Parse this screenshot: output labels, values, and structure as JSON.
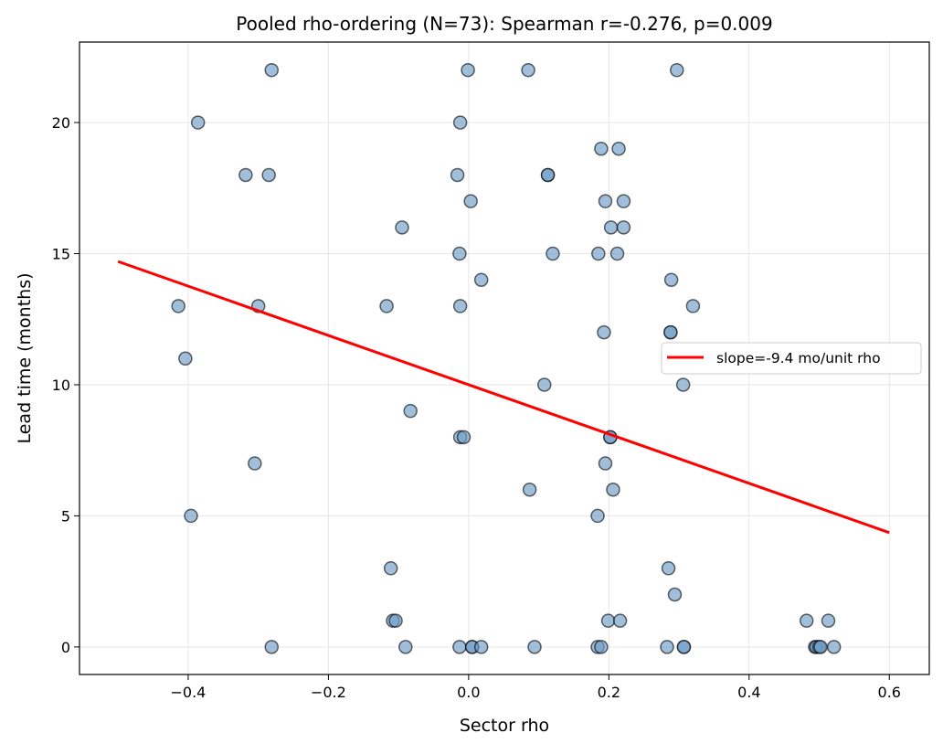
{
  "chart_data": {
    "type": "scatter",
    "title": "Pooled rho-ordering (N=73): Spearman r=-0.276, p=0.009",
    "xlabel": "Sector rho",
    "ylabel": "Lead time (months)",
    "xlim": [
      -0.555,
      0.657
    ],
    "ylim": [
      -1.05,
      23.07
    ],
    "xticks": [
      -0.4,
      -0.2,
      0.0,
      0.2,
      0.4,
      0.6
    ],
    "xtick_labels": [
      "−0.4",
      "−0.2",
      "0.0",
      "0.2",
      "0.4",
      "0.6"
    ],
    "yticks": [
      0,
      5,
      10,
      15,
      20
    ],
    "ytick_labels": [
      "0",
      "5",
      "10",
      "15",
      "20"
    ],
    "grid": true,
    "legend": {
      "placement": "center-right",
      "entries": [
        "slope=-9.4 mo/unit rho"
      ]
    },
    "colors": {
      "points": "#6f9cc8",
      "point_edge": "#000000",
      "fit_line": "#ff0000"
    },
    "fit_line": {
      "name": "slope=-9.4 mo/unit rho",
      "x": [
        -0.5,
        0.6
      ],
      "y": [
        14.7,
        4.36
      ]
    },
    "points": [
      [
        -0.281,
        22
      ],
      [
        -0.001,
        22
      ],
      [
        0.085,
        22
      ],
      [
        0.297,
        22
      ],
      [
        -0.386,
        20
      ],
      [
        -0.012,
        20
      ],
      [
        0.189,
        19
      ],
      [
        0.214,
        19
      ],
      [
        -0.318,
        18
      ],
      [
        -0.285,
        18
      ],
      [
        -0.016,
        18
      ],
      [
        0.113,
        18
      ],
      [
        0.113,
        18
      ],
      [
        0.003,
        17
      ],
      [
        0.195,
        17
      ],
      [
        0.221,
        17
      ],
      [
        -0.095,
        16
      ],
      [
        0.203,
        16
      ],
      [
        0.221,
        16
      ],
      [
        -0.013,
        15
      ],
      [
        0.12,
        15
      ],
      [
        0.185,
        15
      ],
      [
        0.212,
        15
      ],
      [
        0.018,
        14
      ],
      [
        0.289,
        14
      ],
      [
        -0.414,
        13
      ],
      [
        -0.3,
        13
      ],
      [
        -0.117,
        13
      ],
      [
        -0.012,
        13
      ],
      [
        0.32,
        13
      ],
      [
        0.193,
        12
      ],
      [
        0.288,
        12
      ],
      [
        0.288,
        12
      ],
      [
        -0.404,
        11
      ],
      [
        0.108,
        10
      ],
      [
        0.306,
        10
      ],
      [
        -0.083,
        9
      ],
      [
        -0.012,
        8
      ],
      [
        -0.007,
        8
      ],
      [
        0.202,
        8
      ],
      [
        0.202,
        8
      ],
      [
        -0.305,
        7
      ],
      [
        0.195,
        7
      ],
      [
        0.087,
        6
      ],
      [
        0.206,
        6
      ],
      [
        -0.396,
        5
      ],
      [
        0.184,
        5
      ],
      [
        -0.111,
        3
      ],
      [
        0.285,
        3
      ],
      [
        0.294,
        2
      ],
      [
        -0.108,
        1
      ],
      [
        -0.104,
        1
      ],
      [
        0.199,
        1
      ],
      [
        0.216,
        1
      ],
      [
        0.482,
        1
      ],
      [
        0.513,
        1
      ],
      [
        -0.281,
        0
      ],
      [
        -0.09,
        0
      ],
      [
        -0.013,
        0
      ],
      [
        0.005,
        0
      ],
      [
        0.005,
        0
      ],
      [
        0.018,
        0
      ],
      [
        0.094,
        0
      ],
      [
        0.184,
        0
      ],
      [
        0.189,
        0
      ],
      [
        0.283,
        0
      ],
      [
        0.307,
        0
      ],
      [
        0.307,
        0
      ],
      [
        0.494,
        0
      ],
      [
        0.496,
        0
      ],
      [
        0.5,
        0
      ],
      [
        0.502,
        0
      ],
      [
        0.521,
        0
      ]
    ]
  }
}
